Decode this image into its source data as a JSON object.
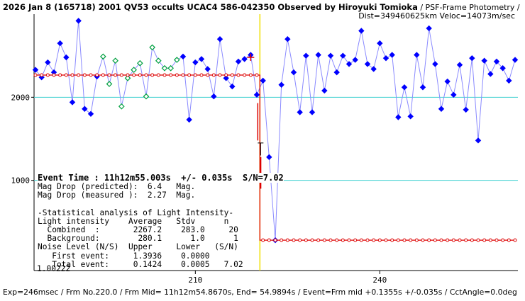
{
  "header": {
    "title_bold": "2026 Jan 8 (165718) 2001 QV53 occults UCAC4 586-042350 Observed by Hiroyuki Tomioka",
    "title_method": " / PSF-Frame Photometry /",
    "title_line2": "Dist=349460625km Veloc=14073m/sec"
  },
  "panel": {
    "event_time": "Event Time : 11h12m55.003s  +/- 0.035s  S/N=7.02",
    "lines": [
      "Mag Drop (predicted):  6.4   Mag.",
      "Mag Drop (measured ):  2.27  Mag.",
      "",
      "-Statistical analysis of Light Intensity-",
      "Light intensity    Average   Stdv      n",
      "  Combined  :       2267.2    283.0     20",
      "  Background:        280.1      1.0      1",
      "Noise Level (N/S)  Upper     Lower   (S/N)",
      "   First event:     1.3936    0.0000",
      "   Total event:     0.1424    0.0005   7.02"
    ]
  },
  "footer": {
    "text": "Exp=246msec / Frm No.220.0 / Frm Mid= 11h12m54.8670s, End= 54.9894s / Event=Frm mid +0.1355s +/-0.035s / CctAngle=0.0deg"
  },
  "chart_data": {
    "type": "line",
    "x_ticks": [
      210,
      240
    ],
    "y_ticks": [
      2000,
      1000
    ],
    "y_min_label": "1.00222",
    "xlim": [
      184,
      262
    ],
    "ylim": [
      0,
      3000
    ],
    "event_x": 220.5,
    "model": {
      "high": 2267,
      "low": 280
    },
    "colors": {
      "series": "#0000ff",
      "comparison": "#00a040",
      "model": "#dd0000",
      "event_line": "#f0e000",
      "ref_line": "#40d0d0"
    },
    "series": [
      {
        "name": "target",
        "x": [
          184,
          185,
          186,
          187,
          188,
          189,
          190,
          191,
          192,
          193,
          194,
          195,
          196,
          197,
          198,
          199,
          200,
          201,
          202,
          203,
          204,
          205,
          206,
          207,
          208,
          209,
          210,
          211,
          212,
          213,
          214,
          215,
          216,
          217,
          218,
          219,
          220,
          221,
          222,
          223,
          224,
          225,
          226,
          227,
          228,
          229,
          230,
          231,
          232,
          233,
          234,
          235,
          236,
          237,
          238,
          239,
          240,
          241,
          242,
          243,
          244,
          245,
          246,
          247,
          248,
          249,
          250,
          251,
          252,
          253,
          254,
          255,
          256,
          257,
          258,
          259,
          260,
          261,
          262
        ],
        "y": [
          2330,
          2240,
          2420,
          2300,
          2650,
          2480,
          1940,
          2920,
          1860,
          1800,
          2250,
          2490,
          2160,
          2440,
          1890,
          2230,
          2330,
          2410,
          2010,
          2600,
          2440,
          2350,
          2350,
          2450,
          2490,
          1730,
          2420,
          2460,
          2340,
          2010,
          2700,
          2230,
          2130,
          2430,
          2460,
          2510,
          2030,
          2200,
          1280,
          280,
          2150,
          2700,
          2300,
          1820,
          2500,
          1820,
          2510,
          2080,
          2500,
          2300,
          2500,
          2400,
          2450,
          2800,
          2400,
          2340,
          2650,
          2470,
          2510,
          1760,
          2120,
          1770,
          2510,
          2120,
          2830,
          2400,
          1860,
          2190,
          2030,
          2390,
          1850,
          2470,
          1480,
          2440,
          2280,
          2430,
          2350,
          2200,
          2450
        ]
      }
    ]
  }
}
